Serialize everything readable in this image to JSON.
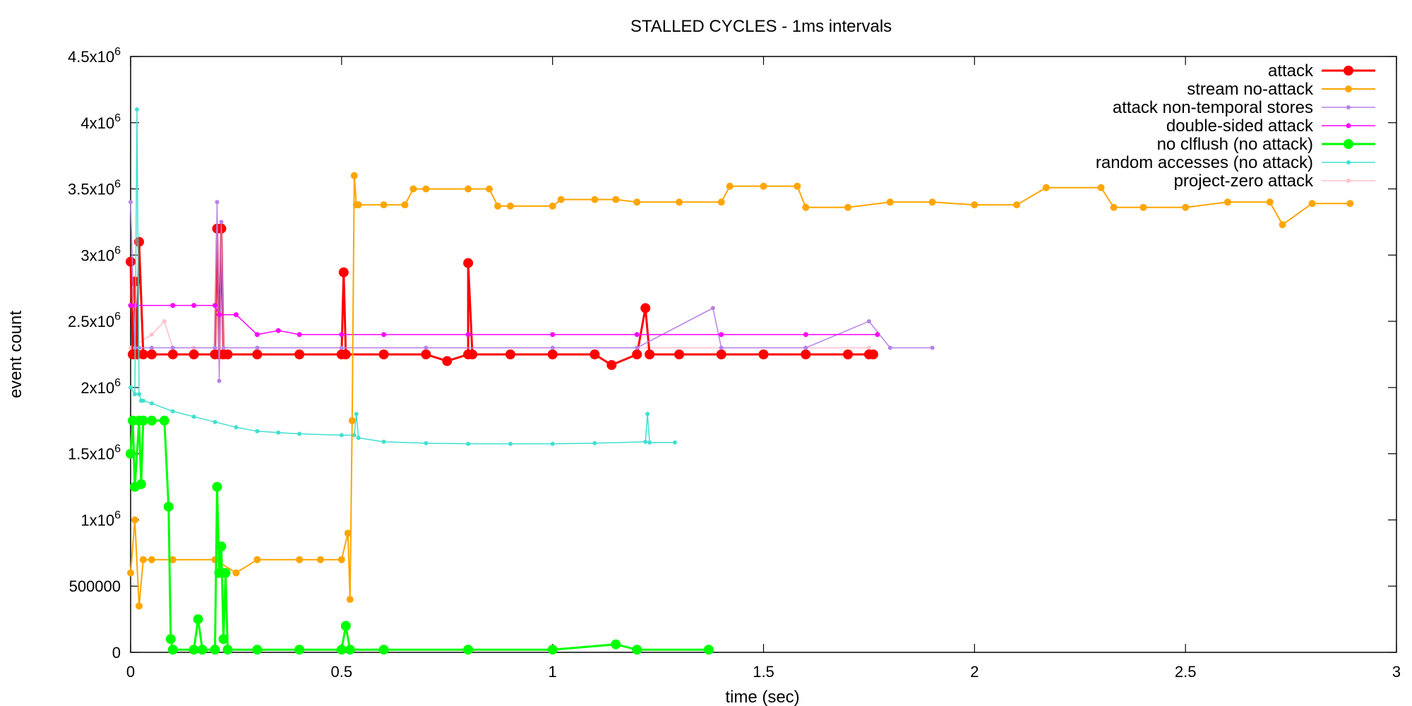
{
  "chart_data": {
    "type": "line",
    "title": "STALLED CYCLES - 1ms intervals",
    "xlabel": "time (sec)",
    "ylabel": "event count",
    "xlim": [
      0,
      3
    ],
    "ylim": [
      0,
      4500000
    ],
    "x_ticks": [
      {
        "value": 0,
        "label": "0"
      },
      {
        "value": 0.5,
        "label": "0.5"
      },
      {
        "value": 1,
        "label": "1"
      },
      {
        "value": 1.5,
        "label": "1.5"
      },
      {
        "value": 2,
        "label": "2"
      },
      {
        "value": 2.5,
        "label": "2.5"
      },
      {
        "value": 3,
        "label": "3"
      }
    ],
    "y_ticks": [
      {
        "value": 0,
        "base": "0",
        "exp": ""
      },
      {
        "value": 500000,
        "base": "500000",
        "exp": ""
      },
      {
        "value": 1000000,
        "base": "1x10",
        "exp": "6"
      },
      {
        "value": 1500000,
        "base": "1.5x10",
        "exp": "6"
      },
      {
        "value": 2000000,
        "base": "2x10",
        "exp": "6"
      },
      {
        "value": 2500000,
        "base": "2.5x10",
        "exp": "6"
      },
      {
        "value": 3000000,
        "base": "3x10",
        "exp": "6"
      },
      {
        "value": 3500000,
        "base": "3.5x10",
        "exp": "6"
      },
      {
        "value": 4000000,
        "base": "4x10",
        "exp": "6"
      },
      {
        "value": 4500000,
        "base": "4.5x10",
        "exp": "6"
      }
    ],
    "grid": false,
    "legend_position": "top-right",
    "series": [
      {
        "name": "attack",
        "color": "#ff0000",
        "x": [
          0,
          0.005,
          0.01,
          0.015,
          0.02,
          0.03,
          0.05,
          0.1,
          0.15,
          0.2,
          0.205,
          0.21,
          0.215,
          0.22,
          0.23,
          0.3,
          0.4,
          0.5,
          0.505,
          0.51,
          0.6,
          0.7,
          0.75,
          0.8,
          0.8,
          0.81,
          0.9,
          1.0,
          1.1,
          1.14,
          1.2,
          1.22,
          1.23,
          1.3,
          1.4,
          1.5,
          1.6,
          1.7,
          1.75,
          1.76
        ],
        "y": [
          2950000,
          2250000,
          2800000,
          2250000,
          3100000,
          2250000,
          2250000,
          2250000,
          2250000,
          2250000,
          3200000,
          2250000,
          3200000,
          2250000,
          2250000,
          2250000,
          2250000,
          2250000,
          2870000,
          2250000,
          2250000,
          2250000,
          2200000,
          2250000,
          2940000,
          2250000,
          2250000,
          2250000,
          2250000,
          2170000,
          2250000,
          2600000,
          2250000,
          2250000,
          2250000,
          2250000,
          2250000,
          2250000,
          2250000,
          2250000
        ]
      },
      {
        "name": "stream no-attack",
        "color": "#ffa500",
        "x": [
          0,
          0.01,
          0.02,
          0.03,
          0.05,
          0.1,
          0.2,
          0.25,
          0.3,
          0.4,
          0.45,
          0.5,
          0.515,
          0.52,
          0.525,
          0.53,
          0.535,
          0.54,
          0.6,
          0.65,
          0.67,
          0.7,
          0.8,
          0.85,
          0.87,
          0.9,
          1.0,
          1.02,
          1.1,
          1.15,
          1.2,
          1.3,
          1.4,
          1.42,
          1.5,
          1.58,
          1.6,
          1.7,
          1.8,
          1.9,
          2.0,
          2.1,
          2.17,
          2.3,
          2.33,
          2.4,
          2.5,
          2.6,
          2.7,
          2.73,
          2.8,
          2.89
        ],
        "y": [
          600000,
          1000000,
          350000,
          700000,
          700000,
          700000,
          700000,
          600000,
          700000,
          700000,
          700000,
          700000,
          900000,
          400000,
          1750000,
          3600000,
          3380000,
          3380000,
          3380000,
          3380000,
          3500000,
          3500000,
          3500000,
          3500000,
          3370000,
          3370000,
          3370000,
          3420000,
          3420000,
          3420000,
          3400000,
          3400000,
          3400000,
          3520000,
          3520000,
          3520000,
          3360000,
          3360000,
          3400000,
          3400000,
          3380000,
          3380000,
          3510000,
          3510000,
          3360000,
          3360000,
          3360000,
          3400000,
          3400000,
          3230000,
          3390000,
          3390000
        ]
      },
      {
        "name": "attack non-temporal stores",
        "color": "#b681e8",
        "x": [
          0,
          0.01,
          0.02,
          0.05,
          0.1,
          0.2,
          0.205,
          0.21,
          0.215,
          0.22,
          0.3,
          0.5,
          0.7,
          1.0,
          1.2,
          1.38,
          1.4,
          1.6,
          1.75,
          1.8,
          1.9
        ],
        "y": [
          3400000,
          2300000,
          2300000,
          2300000,
          2300000,
          2300000,
          3400000,
          2050000,
          3250000,
          2300000,
          2300000,
          2300000,
          2300000,
          2300000,
          2300000,
          2600000,
          2300000,
          2300000,
          2500000,
          2300000,
          2300000
        ]
      },
      {
        "name": "double-sided attack",
        "color": "#ff00ff",
        "x": [
          0,
          0.01,
          0.1,
          0.15,
          0.2,
          0.21,
          0.25,
          0.3,
          0.35,
          0.4,
          0.5,
          0.6,
          0.8,
          1.0,
          1.2,
          1.4,
          1.6,
          1.77
        ],
        "y": [
          2620000,
          2620000,
          2620000,
          2620000,
          2620000,
          2550000,
          2550000,
          2400000,
          2430000,
          2400000,
          2400000,
          2400000,
          2400000,
          2400000,
          2400000,
          2400000,
          2400000,
          2400000
        ]
      },
      {
        "name": "no clflush (no attack)",
        "color": "#00ff00",
        "x": [
          0,
          0.005,
          0.01,
          0.02,
          0.025,
          0.03,
          0.05,
          0.08,
          0.09,
          0.095,
          0.1,
          0.15,
          0.16,
          0.17,
          0.2,
          0.205,
          0.21,
          0.215,
          0.22,
          0.225,
          0.23,
          0.3,
          0.4,
          0.5,
          0.51,
          0.52,
          0.6,
          0.8,
          1.0,
          1.15,
          1.2,
          1.37
        ],
        "y": [
          1500000,
          1750000,
          1250000,
          1750000,
          1270000,
          1750000,
          1750000,
          1750000,
          1100000,
          100000,
          20000,
          20000,
          250000,
          20000,
          20000,
          1250000,
          600000,
          800000,
          100000,
          600000,
          20000,
          20000,
          20000,
          20000,
          200000,
          20000,
          20000,
          20000,
          20000,
          60000,
          20000,
          20000
        ]
      },
      {
        "name": "random accesses (no attack)",
        "color": "#40e0d0",
        "x": [
          0,
          0.01,
          0.015,
          0.02,
          0.025,
          0.03,
          0.05,
          0.1,
          0.15,
          0.2,
          0.25,
          0.3,
          0.35,
          0.4,
          0.5,
          0.53,
          0.535,
          0.54,
          0.6,
          0.7,
          0.8,
          0.9,
          1.0,
          1.1,
          1.22,
          1.225,
          1.23,
          1.29
        ],
        "y": [
          2000000,
          1950000,
          4100000,
          1950000,
          1900000,
          1900000,
          1880000,
          1820000,
          1780000,
          1740000,
          1700000,
          1670000,
          1660000,
          1650000,
          1640000,
          1640000,
          1800000,
          1620000,
          1590000,
          1580000,
          1575000,
          1575000,
          1575000,
          1580000,
          1590000,
          1800000,
          1585000,
          1585000
        ]
      },
      {
        "name": "project-zero attack",
        "color": "#ffc0cb",
        "x": [
          0,
          0.05,
          0.08,
          0.1,
          0.15,
          0.2,
          0.3,
          0.5,
          0.7,
          1.0,
          1.2,
          1.4,
          1.6,
          1.75
        ],
        "y": [
          2300000,
          2400000,
          2500000,
          2300000,
          2300000,
          2300000,
          2300000,
          2300000,
          2300000,
          2300000,
          2300000,
          2300000,
          2300000,
          2300000
        ]
      }
    ]
  }
}
